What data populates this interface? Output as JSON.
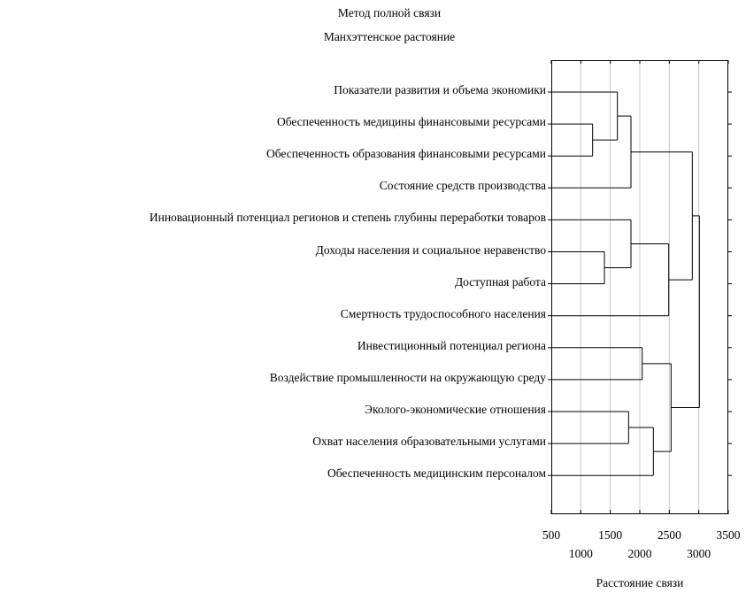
{
  "chart_data": {
    "type": "dendrogram",
    "title": "Метод полной связи",
    "subtitle": "Манхэттенское растояние",
    "xlabel": "Расстояние связи",
    "xlim": [
      500,
      3500
    ],
    "ticks": [
      500,
      1000,
      1500,
      2000,
      2500,
      3000,
      3500
    ],
    "grid": true,
    "leaves": [
      "Показатели развития и объема экономики",
      "Обеспеченность медицины финансовыми ресурсами",
      "Обеспеченность образования финансовыми ресурсами",
      "Состояние средств производства",
      "Инновационный потенциал регионов и степень глубины переработки товаров",
      "Доходы населения и социальное неравенство",
      "Доступная работа",
      "Смертность трудоспособного населения",
      "Инвестиционный потенциал региона",
      "Воздействие промышленности на окружающую среду",
      "Эколого-экономические отношения",
      "Охват населения образовательными услугами",
      "Обеспеченность медицинским персоналом"
    ],
    "merges": [
      {
        "a": 1,
        "b": 2,
        "height": 1200
      },
      {
        "a": 5,
        "b": 6,
        "height": 1400
      },
      {
        "a": 0,
        "b": 13,
        "height": 1620
      },
      {
        "a": 10,
        "b": 11,
        "height": 1810
      },
      {
        "a": 15,
        "b": 3,
        "height": 1850
      },
      {
        "a": 4,
        "b": 14,
        "height": 1850
      },
      {
        "a": 8,
        "b": 9,
        "height": 2040
      },
      {
        "a": 16,
        "b": 12,
        "height": 2230
      },
      {
        "a": 18,
        "b": 7,
        "height": 2490
      },
      {
        "a": 19,
        "b": 20,
        "height": 2530
      },
      {
        "a": 17,
        "b": 21,
        "height": 2890
      },
      {
        "a": 23,
        "b": 22,
        "height": 3010
      }
    ]
  }
}
